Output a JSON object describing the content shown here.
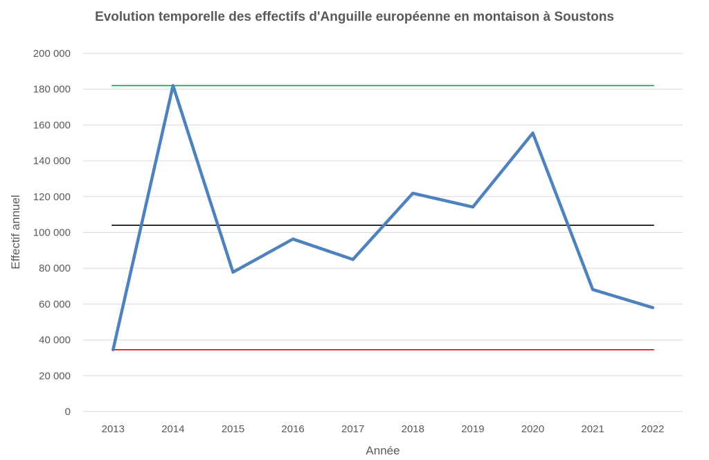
{
  "chart_data": {
    "type": "line",
    "title": "Evolution temporelle des effectifs d'Anguille européenne en montaison à Soustons",
    "xlabel": "Année",
    "ylabel": "Effectif annuel",
    "categories": [
      "2013",
      "2014",
      "2015",
      "2016",
      "2017",
      "2018",
      "2019",
      "2020",
      "2021",
      "2022"
    ],
    "ylim": [
      0,
      200000
    ],
    "yticks": [
      0,
      20000,
      40000,
      60000,
      80000,
      100000,
      120000,
      140000,
      160000,
      180000,
      200000
    ],
    "ytick_labels": [
      "0",
      "20 000",
      "40 000",
      "60 000",
      "80 000",
      "100 000",
      "120 000",
      "140 000",
      "160 000",
      "180 000",
      "200 000"
    ],
    "grid": true,
    "legend": "none",
    "series": [
      {
        "values": [
          34500,
          182000,
          77800,
          96300,
          84900,
          121900,
          114200,
          155500,
          68100,
          58000
        ],
        "color": "#4F81BD"
      }
    ],
    "reference_lines": [
      {
        "value": 182000,
        "color": "#00A050"
      },
      {
        "value": 104000,
        "color": "#000000"
      },
      {
        "value": 34500,
        "color": "#E00000"
      }
    ]
  }
}
